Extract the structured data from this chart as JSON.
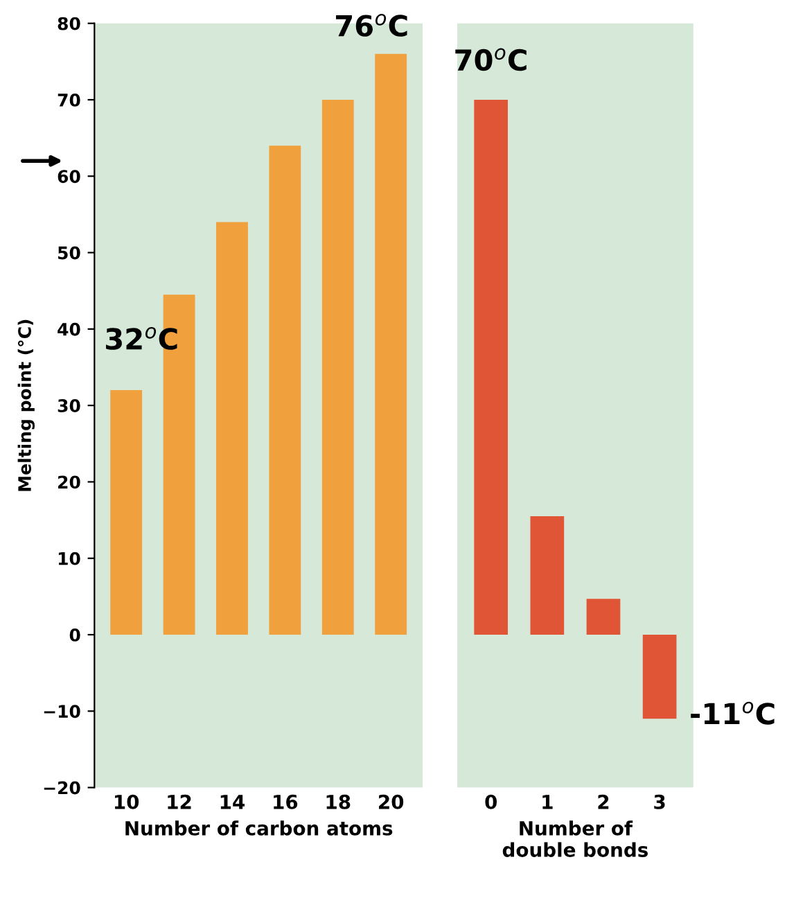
{
  "chart_data": [
    {
      "type": "bar",
      "xlabel": "Number of carbon atoms",
      "ylabel": "Melting point (°C)",
      "categories": [
        "10",
        "12",
        "14",
        "16",
        "18",
        "20"
      ],
      "series": [
        {
          "color": "#f0a03c",
          "values": [
            32,
            44.5,
            54,
            64,
            70,
            76
          ]
        }
      ],
      "ylim": [
        -20,
        80
      ],
      "yticks": [
        {
          "value": -20,
          "label": "−20"
        },
        {
          "value": -10,
          "label": "−10"
        },
        0,
        10,
        20,
        30,
        40,
        50,
        60,
        70,
        80
      ],
      "grid": false,
      "annotations": [
        {
          "text": "32$^{o}$C",
          "x": "10",
          "y": 32
        },
        {
          "text": "76$^{o}$C",
          "x": "20",
          "y": 76
        }
      ]
    },
    {
      "type": "bar",
      "xlabel": "Number of\ndouble bonds",
      "categories": [
        "0",
        "1",
        "2",
        "3"
      ],
      "series": [
        {
          "color": "#e05535",
          "values": [
            70,
            15.5,
            4.7,
            -11
          ]
        }
      ],
      "ylim": [
        -20,
        80
      ],
      "tick_labels": "x",
      "grid": false,
      "annotations": [
        {
          "text": "70$^{o}$C",
          "x": "0",
          "y": 70
        },
        {
          "text": "-11$^{o}$C",
          "x": "3",
          "y": -11
        }
      ]
    }
  ]
}
